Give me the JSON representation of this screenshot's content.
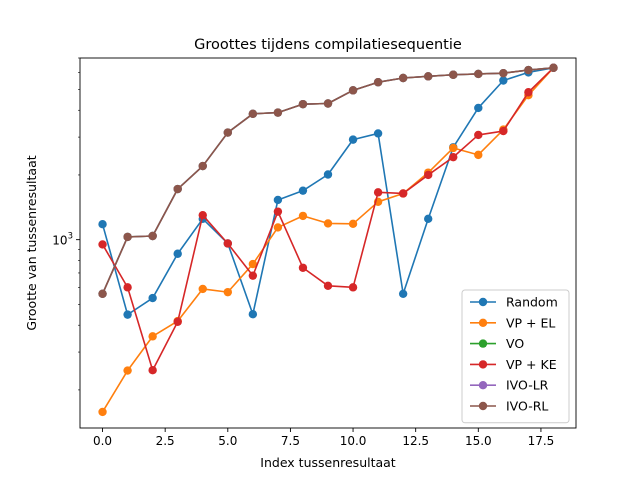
{
  "chart_data": {
    "type": "line",
    "title": "Groottes tijdens compilatiesequentie",
    "xlabel": "Index tussenresultaat",
    "ylabel": "Grootte van tussenresultaat",
    "yscale": "log",
    "xlim": [
      -0.9,
      18.9
    ],
    "ylim": [
      133,
      7000
    ],
    "x": [
      0,
      1,
      2,
      3,
      4,
      5,
      6,
      7,
      8,
      9,
      10,
      11,
      12,
      13,
      14,
      15,
      16,
      17,
      18
    ],
    "xticks": [
      0.0,
      2.5,
      5.0,
      7.5,
      10.0,
      12.5,
      15.0,
      17.5
    ],
    "xtick_labels": [
      "0.0",
      "2.5",
      "5.0",
      "7.5",
      "10.0",
      "12.5",
      "15.0",
      "17.5"
    ],
    "yticks": [
      1000
    ],
    "ytick_labels": [
      "10^3"
    ],
    "legend_position": "lower-right",
    "series": [
      {
        "name": "Random",
        "color": "#1f77b4",
        "values": [
          1180,
          448,
          535,
          860,
          1250,
          960,
          450,
          1530,
          1690,
          2010,
          2920,
          3120,
          560,
          1250,
          2690,
          4100,
          5500,
          6000,
          6300
        ]
      },
      {
        "name": "VP + EL",
        "color": "#ff7f0e",
        "values": [
          158,
          246,
          355,
          418,
          590,
          570,
          770,
          1140,
          1290,
          1190,
          1185,
          1500,
          1640,
          2050,
          2670,
          2480,
          3250,
          4700,
          6300
        ]
      },
      {
        "name": "VO",
        "color": "#2ca02c",
        "values": [
          560,
          1030,
          1040,
          1720,
          2200,
          3150,
          3850,
          3900,
          4270,
          4300,
          4950,
          5400,
          5650,
          5750,
          5850,
          5900,
          5950,
          6150,
          6300
        ]
      },
      {
        "name": "VP + KE",
        "color": "#d62728",
        "values": [
          950,
          600,
          247,
          415,
          1300,
          960,
          680,
          1350,
          740,
          610,
          600,
          1660,
          1640,
          2000,
          2420,
          3070,
          3200,
          4850,
          6300
        ]
      },
      {
        "name": "IVO-LR",
        "color": "#9467bd",
        "values": [
          560,
          1030,
          1040,
          1720,
          2200,
          3150,
          3850,
          3900,
          4270,
          4300,
          4950,
          5400,
          5650,
          5750,
          5850,
          5900,
          5950,
          6150,
          6300
        ]
      },
      {
        "name": "IVO-RL",
        "color": "#8c564b",
        "values": [
          560,
          1030,
          1040,
          1720,
          2200,
          3150,
          3850,
          3900,
          4270,
          4300,
          4950,
          5400,
          5650,
          5750,
          5850,
          5900,
          5950,
          6150,
          6300
        ]
      }
    ]
  }
}
